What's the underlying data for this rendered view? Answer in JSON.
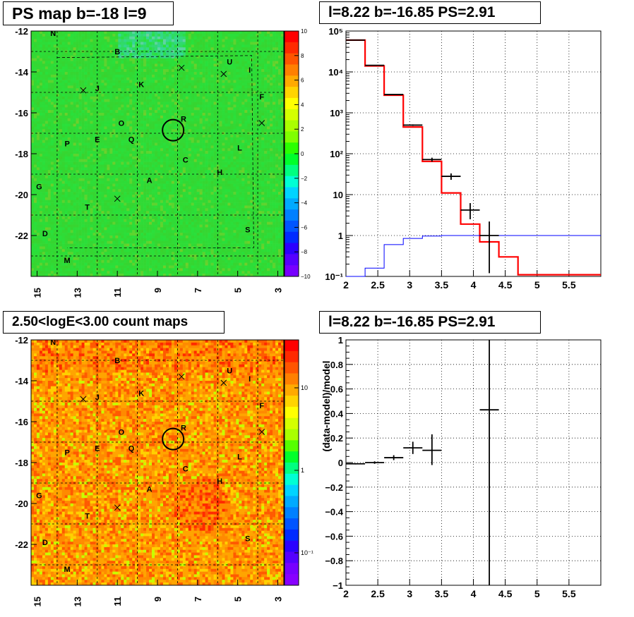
{
  "chart_data": [
    {
      "type": "heatmap",
      "title": "PS map b=-18 l=9",
      "x_ticks": [
        "15",
        "13",
        "11",
        "9",
        "7",
        "5",
        "3"
      ],
      "y_ticks": [
        "-12",
        "-14",
        "-16",
        "-18",
        "-20",
        "-22"
      ],
      "colorbar_ticks": [
        "10",
        "8",
        "6",
        "4",
        "2",
        "0",
        "−2",
        "−4",
        "−6",
        "−8",
        "−10"
      ],
      "colorbar_range": [
        -10,
        10
      ],
      "grid": true,
      "source_labels": [
        {
          "t": "N",
          "l": 14.2,
          "b": -12.1
        },
        {
          "t": "B",
          "l": 11.0,
          "b": -13.0
        },
        {
          "t": "U",
          "l": 5.4,
          "b": -13.5
        },
        {
          "t": "I",
          "l": 4.4,
          "b": -13.9
        },
        {
          "t": "K",
          "l": 9.8,
          "b": -14.6
        },
        {
          "t": "J",
          "l": 12.0,
          "b": -14.8
        },
        {
          "t": "F",
          "l": 3.8,
          "b": -15.2
        },
        {
          "t": "R",
          "l": 7.7,
          "b": -16.3
        },
        {
          "t": "O",
          "l": 10.8,
          "b": -16.5
        },
        {
          "t": "P",
          "l": 13.5,
          "b": -17.5
        },
        {
          "t": "E",
          "l": 12.0,
          "b": -17.3
        },
        {
          "t": "Q",
          "l": 10.3,
          "b": -17.3
        },
        {
          "t": "L",
          "l": 4.9,
          "b": -17.7
        },
        {
          "t": "C",
          "l": 7.6,
          "b": -18.3
        },
        {
          "t": "H",
          "l": 5.9,
          "b": -18.9
        },
        {
          "t": "A",
          "l": 9.4,
          "b": -19.3
        },
        {
          "t": "G",
          "l": 14.9,
          "b": -19.6
        },
        {
          "t": "T",
          "l": 12.5,
          "b": -20.6
        },
        {
          "t": "S",
          "l": 4.5,
          "b": -21.7
        },
        {
          "t": "D",
          "l": 14.6,
          "b": -21.9
        },
        {
          "t": "M",
          "l": 13.5,
          "b": -23.2
        }
      ],
      "crosses": [
        [
          7.8,
          -13.8
        ],
        [
          5.7,
          -14.1
        ],
        [
          12.7,
          -14.9
        ],
        [
          3.8,
          -16.5
        ],
        [
          11.0,
          -20.2
        ]
      ],
      "circle": {
        "l": 8.22,
        "b": -16.85
      }
    },
    {
      "type": "line",
      "title": "l=8.22 b=-16.85 PS=2.91",
      "x_ticks": [
        "2",
        "2.5",
        "3",
        "3.5",
        "4",
        "4.5",
        "5",
        "5.5"
      ],
      "xlim": [
        2,
        6
      ],
      "yscale": "log",
      "ylim": [
        0.1,
        100000
      ],
      "y_ticks": [
        "10⁻¹",
        "1",
        "10",
        "10²",
        "10³",
        "10⁴",
        "10⁵"
      ],
      "grid": true,
      "bin_edges": [
        2.0,
        2.3,
        2.6,
        2.9,
        3.2,
        3.5,
        3.8,
        4.1,
        4.4,
        4.7,
        5.0,
        5.3,
        5.6,
        5.9,
        6.0
      ],
      "series": [
        {
          "color": "#ff0000",
          "values": [
            60000,
            14000,
            2700,
            450,
            65,
            11,
            1.9,
            0.7,
            0.3,
            0.11,
            0.11,
            0.11,
            0.11,
            0.11
          ]
        },
        {
          "color": "#0000ff",
          "values": [
            0.1,
            0.16,
            0.6,
            0.85,
            0.97,
            1.0,
            1.0,
            1.0,
            1.0,
            1.0,
            1.0,
            1.0,
            1.0,
            1.0
          ]
        }
      ],
      "data_points": [
        {
          "x": 2.15,
          "y": 60000,
          "xerr": 0.15,
          "ylo": 60000,
          "yhi": 60000
        },
        {
          "x": 2.45,
          "y": 14500,
          "xerr": 0.15,
          "ylo": 14500,
          "yhi": 14500
        },
        {
          "x": 2.75,
          "y": 2800,
          "xerr": 0.15,
          "ylo": 2750,
          "yhi": 2850
        },
        {
          "x": 3.05,
          "y": 500,
          "xerr": 0.15,
          "ylo": 478,
          "yhi": 522
        },
        {
          "x": 3.35,
          "y": 72,
          "xerr": 0.15,
          "ylo": 64,
          "yhi": 80
        },
        {
          "x": 3.65,
          "y": 28,
          "xerr": 0.15,
          "ylo": 23,
          "yhi": 33
        },
        {
          "x": 3.95,
          "y": 4.2,
          "xerr": 0.15,
          "ylo": 2.5,
          "yhi": 6.2
        },
        {
          "x": 4.25,
          "y": 1.0,
          "xerr": 0.15,
          "ylo": 0.12,
          "yhi": 2.2
        }
      ]
    },
    {
      "type": "heatmap",
      "title": "2.50<logE<3.00 count maps",
      "x_ticks": [
        "15",
        "13",
        "11",
        "9",
        "7",
        "5",
        "3"
      ],
      "y_ticks": [
        "-12",
        "-14",
        "-16",
        "-18",
        "-20",
        "-22"
      ],
      "colorbar_scale": "log",
      "colorbar_ticks": [
        "10",
        "1",
        "10⁻¹"
      ],
      "grid": true
    },
    {
      "type": "scatter",
      "title": "l=8.22 b=-16.85 PS=2.91",
      "ylabel": "(data-model)/model",
      "x_ticks": [
        "2",
        "2.5",
        "3",
        "3.5",
        "4",
        "4.5",
        "5",
        "5.5"
      ],
      "xlim": [
        2,
        6
      ],
      "ylim": [
        -1,
        1
      ],
      "y_ticks": [
        "1",
        "0.8",
        "0.6",
        "0.4",
        "0.2",
        "0",
        "−0.2",
        "−0.4",
        "−0.6",
        "−0.8",
        "−1"
      ],
      "grid": true,
      "data_points": [
        {
          "x": 2.15,
          "y": -0.01,
          "xerr": 0.15,
          "ylo": -0.015,
          "yhi": -0.005
        },
        {
          "x": 2.45,
          "y": 0.0,
          "xerr": 0.15,
          "ylo": -0.01,
          "yhi": 0.01
        },
        {
          "x": 2.75,
          "y": 0.04,
          "xerr": 0.15,
          "ylo": 0.02,
          "yhi": 0.06
        },
        {
          "x": 3.05,
          "y": 0.12,
          "xerr": 0.15,
          "ylo": 0.07,
          "yhi": 0.17
        },
        {
          "x": 3.35,
          "y": 0.1,
          "xerr": 0.15,
          "ylo": -0.02,
          "yhi": 0.23
        },
        {
          "x": 4.25,
          "y": 0.43,
          "xerr": 0.15,
          "ylo": -1.0,
          "yhi": 1.0
        }
      ]
    }
  ]
}
